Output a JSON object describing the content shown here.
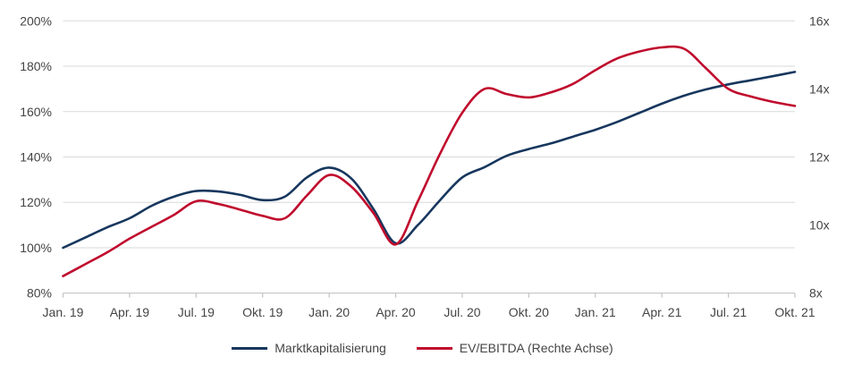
{
  "chart_data": {
    "type": "line",
    "title": "",
    "grid": "horizontal",
    "legend_position": "bottom",
    "x_axis": {
      "tick_labels": [
        "Jan. 19",
        "Apr. 19",
        "Jul. 19",
        "Okt. 19",
        "Jan. 20",
        "Apr. 20",
        "Jul. 20",
        "Okt. 20",
        "Jan. 21",
        "Apr. 21",
        "Jul. 21",
        "Okt. 21"
      ],
      "points_per_tick": 3,
      "total_points": 34,
      "frequency": "monthly"
    },
    "left_axis": {
      "tick_labels": [
        "200%",
        "180%",
        "160%",
        "140%",
        "120%",
        "100%",
        "80%"
      ],
      "tick_values": [
        200,
        180,
        160,
        140,
        120,
        100,
        80
      ],
      "min": 80,
      "max": 200,
      "unit": "%"
    },
    "right_axis": {
      "tick_labels": [
        "16x",
        "14x",
        "12x",
        "10x",
        "8x"
      ],
      "tick_values": [
        16,
        14,
        12,
        10,
        8
      ],
      "min": 8,
      "max": 16,
      "unit": "x"
    },
    "series": [
      {
        "name": "Marktkapitalisierung",
        "axis": "left",
        "color": "#17375e",
        "values": [
          100,
          104.5,
          109,
          113,
          118.5,
          122.5,
          125,
          124.8,
          123.3,
          121,
          122.5,
          131,
          135.3,
          130.5,
          117,
          102,
          110,
          121,
          131,
          135.5,
          140.5,
          143.5,
          146,
          149,
          152,
          155.5,
          159.5,
          163.5,
          167,
          169.8,
          172,
          173.8,
          175.6,
          177.5
        ]
      },
      {
        "name": "EV/EBITDA (Rechte Achse)",
        "axis": "right",
        "color": "#c00b2d",
        "values": [
          8.5,
          8.85,
          9.2,
          9.6,
          9.95,
          10.3,
          10.7,
          10.62,
          10.45,
          10.27,
          10.2,
          10.87,
          11.47,
          11.13,
          10.35,
          9.43,
          10.7,
          12.1,
          13.3,
          14.0,
          13.85,
          13.75,
          13.9,
          14.15,
          14.55,
          14.9,
          15.1,
          15.22,
          15.18,
          14.6,
          14.0,
          13.78,
          13.62,
          13.5
        ]
      }
    ]
  }
}
